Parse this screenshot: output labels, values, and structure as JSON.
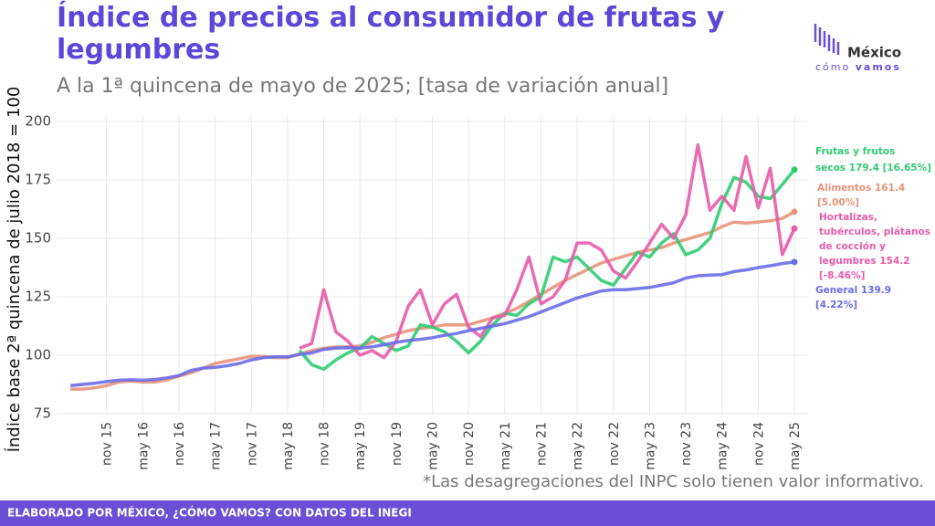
{
  "chart_data": {
    "type": "line",
    "title": "Índice de precios al consumidor de frutas y legumbres",
    "subtitle": "A la 1ª quincena de mayo de 2025; [tasa de variación anual]",
    "y_label": "Índice base 2ª quincena de julio 2018 = 100",
    "note": "*Las desagregaciones del INPC solo tienen valor informativo.",
    "footer": "ELABORADO POR MÉXICO, ¿CÓMO VAMOS? CON DATOS DEL INEGI",
    "logo": [
      "México",
      "cómo",
      "vamos"
    ],
    "ylim": [
      75,
      200
    ],
    "yticks": [
      75,
      100,
      125,
      150,
      175,
      200
    ],
    "grid": true,
    "categories": [
      null,
      null,
      null,
      "nov 15",
      null,
      null,
      "may 16",
      null,
      null,
      "nov 16",
      null,
      null,
      "may 17",
      null,
      null,
      "nov 17",
      null,
      null,
      "may 18",
      null,
      null,
      "nov 18",
      null,
      null,
      "may 19",
      null,
      null,
      "nov 19",
      null,
      null,
      "may 20",
      null,
      null,
      "nov 20",
      null,
      null,
      "may 21",
      null,
      null,
      "nov 21",
      null,
      null,
      "may 22",
      null,
      null,
      "nov 22",
      null,
      null,
      "may 23",
      null,
      null,
      "nov 23",
      null,
      null,
      "may 24",
      null,
      null,
      "nov 24",
      null,
      null,
      "may 25"
    ],
    "series": [
      {
        "name": "Alimentos",
        "color": "#e8937a",
        "label": [
          "Alimentos 161.4",
          "[5.00%]"
        ],
        "values": [
          85.5,
          85.5,
          86,
          87,
          88.5,
          89,
          88.5,
          88.5,
          89.5,
          91,
          92.5,
          94.5,
          96.5,
          97.5,
          98.5,
          99.5,
          99.5,
          99,
          99,
          100.5,
          102,
          103,
          103.5,
          103.5,
          104,
          105.5,
          107.5,
          109,
          110.5,
          111.5,
          112,
          113,
          113,
          113,
          114.5,
          116,
          118,
          120,
          123,
          126,
          129,
          132,
          134.5,
          137,
          139.5,
          141,
          142.5,
          144,
          145,
          146,
          148,
          149.5,
          151,
          152.5,
          155,
          157,
          156.5,
          157,
          157.5,
          158.5,
          161.4
        ]
      },
      {
        "name": "Frutas y frutos secos",
        "color": "#2ecc71",
        "label": [
          "Frutas y frutos",
          "secos 179.4 [16.65%]"
        ],
        "values": [
          null,
          null,
          null,
          null,
          null,
          null,
          null,
          null,
          null,
          null,
          null,
          null,
          null,
          null,
          null,
          null,
          null,
          null,
          null,
          102,
          96,
          94,
          98,
          101,
          103,
          108,
          105,
          102,
          104,
          113,
          112,
          110,
          106,
          101,
          106,
          113,
          118,
          117,
          122,
          125,
          142,
          140,
          142,
          137,
          132,
          130,
          137,
          144,
          142,
          148,
          152,
          143,
          145,
          150,
          165,
          176,
          174,
          168,
          167,
          173,
          179.4
        ]
      },
      {
        "name": "Hortalizas, tubérculos, plátanos de cocción y legumbres",
        "color": "#e75ba8",
        "label": [
          "Hortalizas,",
          "tubérculos, plátanos",
          "de cocción y",
          "legumbres 154.2",
          "[-8.46%]"
        ],
        "values": [
          null,
          null,
          null,
          null,
          null,
          null,
          null,
          null,
          null,
          null,
          null,
          null,
          null,
          null,
          null,
          null,
          null,
          null,
          null,
          103,
          105,
          128,
          110,
          106,
          100,
          102,
          99,
          106,
          121,
          128,
          113,
          122,
          126,
          112,
          108,
          116,
          117,
          128,
          142,
          122,
          125,
          132,
          148,
          148,
          145,
          136,
          133,
          140,
          148,
          156,
          150,
          160,
          190,
          162,
          168,
          162,
          185,
          163,
          180,
          143,
          154.2
        ]
      },
      {
        "name": "General",
        "color": "#6b6be8",
        "label": [
          "General 139.9",
          "[4.22%]"
        ],
        "values": [
          87,
          87.5,
          88,
          88.7,
          89.3,
          89.5,
          89.3,
          89.6,
          90.3,
          91.3,
          93.5,
          94.5,
          94.8,
          95.5,
          96.5,
          98,
          99,
          99.3,
          99.3,
          100.3,
          101,
          102.5,
          103,
          103.2,
          103,
          103.6,
          104.5,
          105.5,
          106.3,
          106.8,
          107.5,
          108.5,
          109.3,
          110.5,
          111.5,
          112.5,
          113.5,
          115,
          116.5,
          118.5,
          120.5,
          122.5,
          124.5,
          126,
          127.5,
          128,
          128,
          128.5,
          129,
          130,
          131,
          133,
          134,
          134.3,
          134.5,
          135.8,
          136.5,
          137.5,
          138.3,
          139.2,
          139.9
        ]
      }
    ]
  }
}
